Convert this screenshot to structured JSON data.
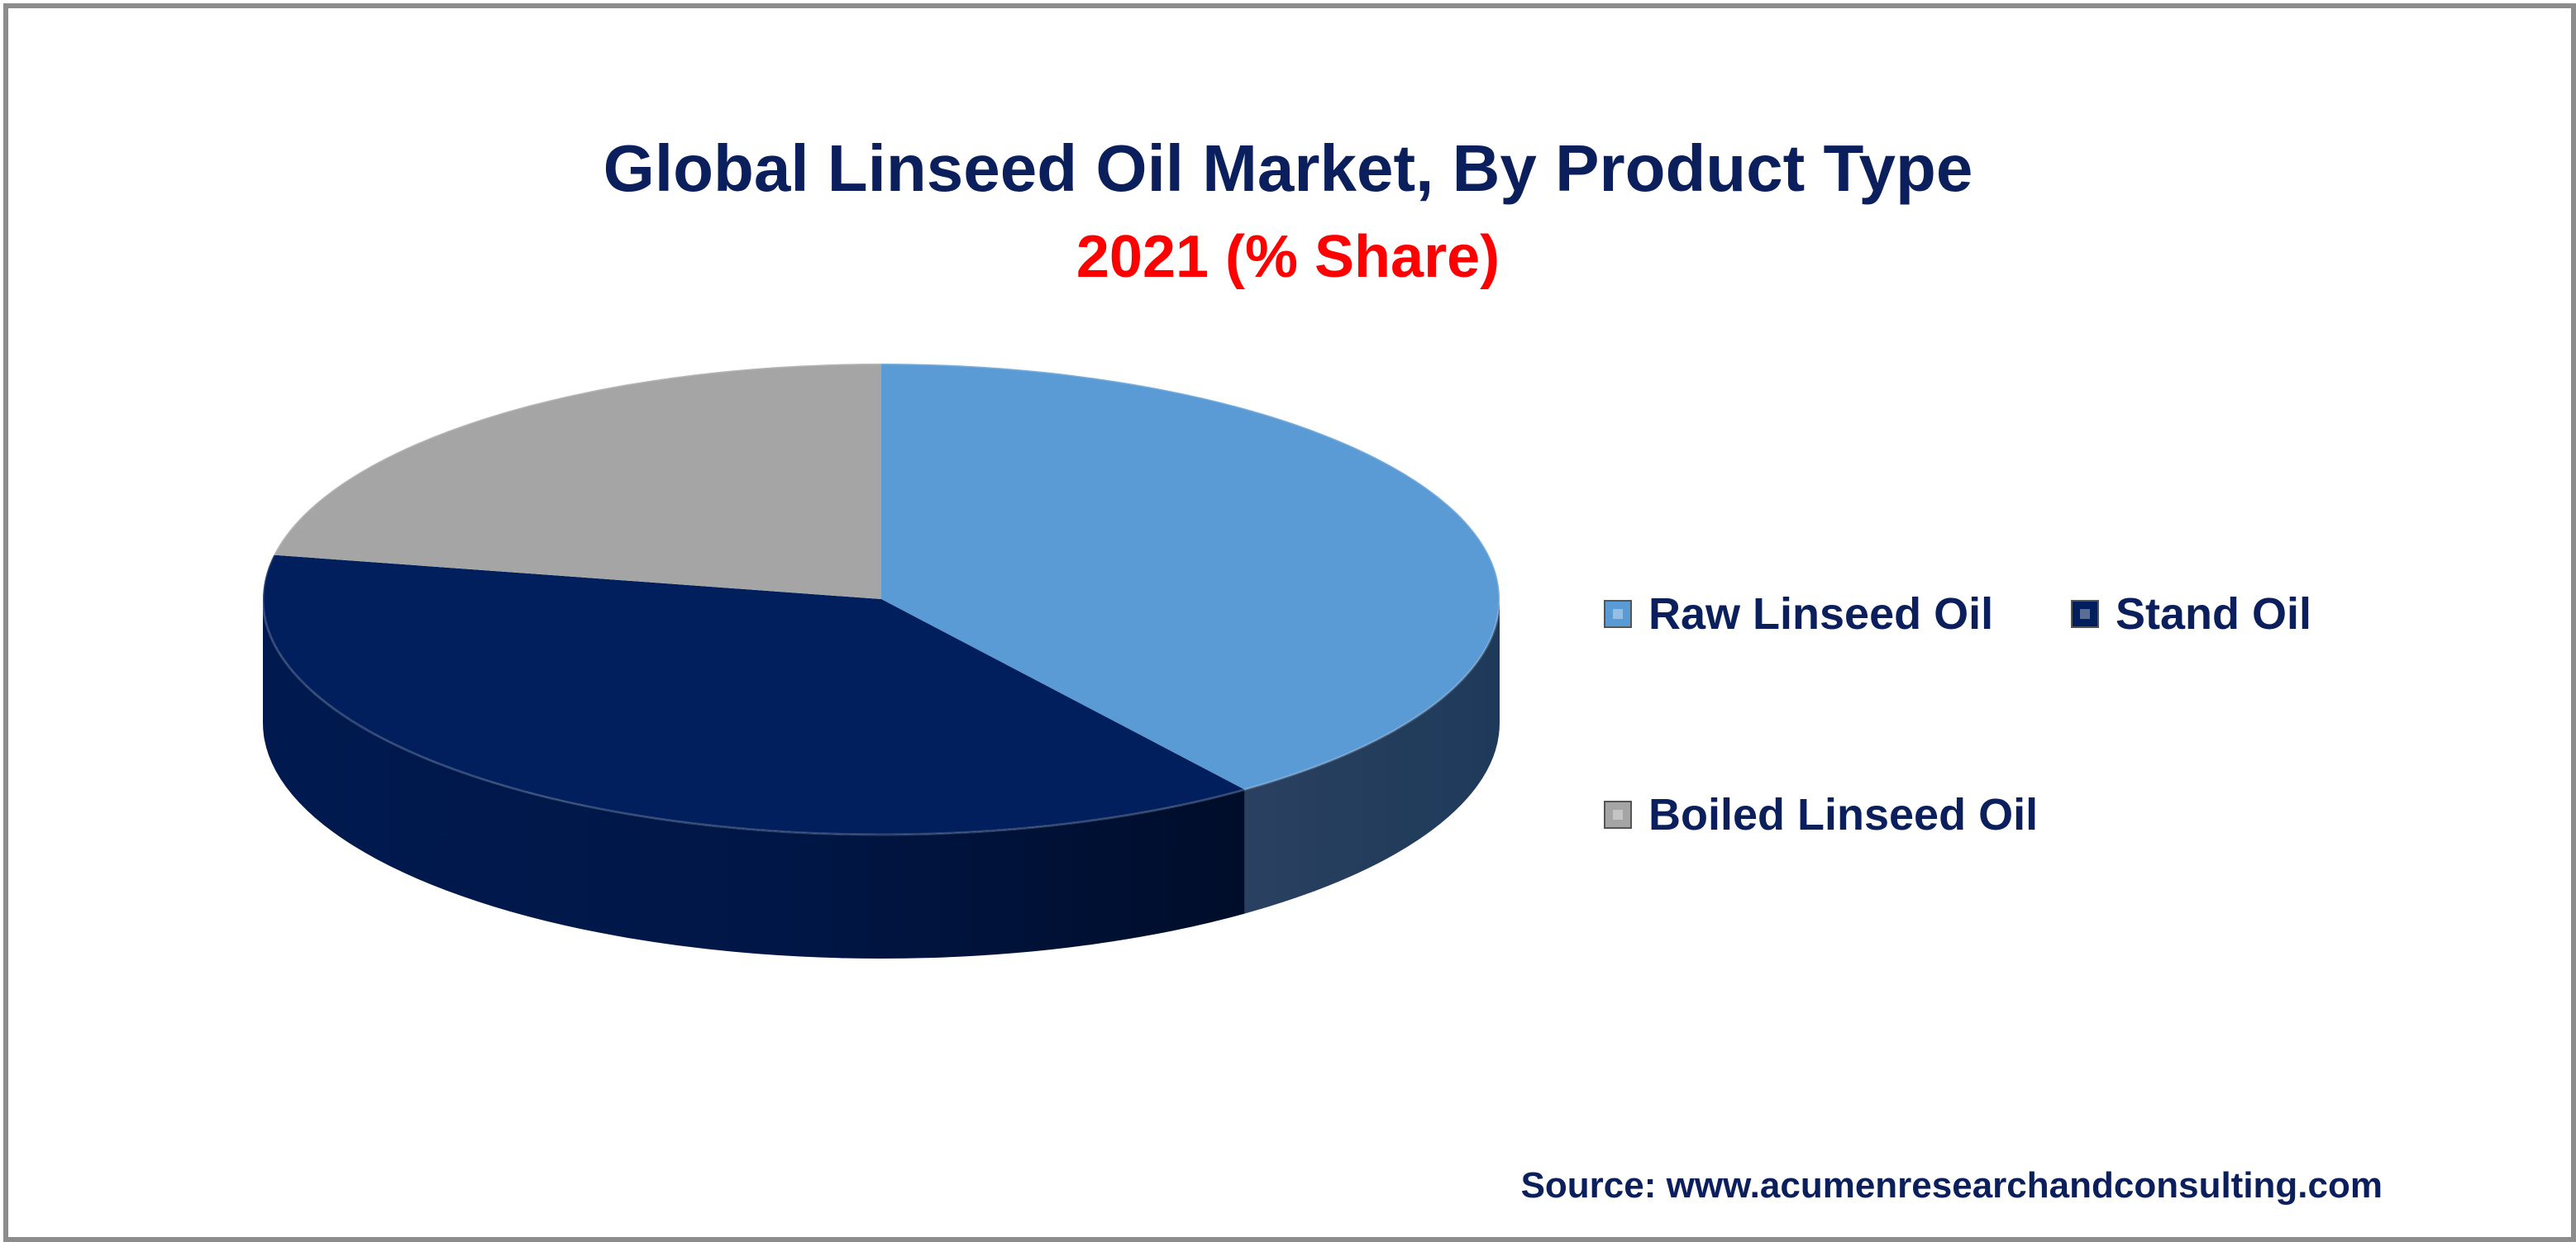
{
  "chart_data": {
    "type": "pie",
    "title": "Global Linseed Oil Market, By Product Type",
    "subtitle": "2021 (% Share)",
    "series": [
      {
        "name": "Raw Linseed Oil",
        "value": 40,
        "color": "#5b9bd5"
      },
      {
        "name": "Stand Oil",
        "value": 38,
        "color": "#001f5c"
      },
      {
        "name": "Boiled Linseed Oil",
        "value": 22,
        "color": "#a5a5a5"
      }
    ],
    "legend_position": "right",
    "style": "3d"
  },
  "source": "Source: www.acumenresearchandconsulting.com"
}
